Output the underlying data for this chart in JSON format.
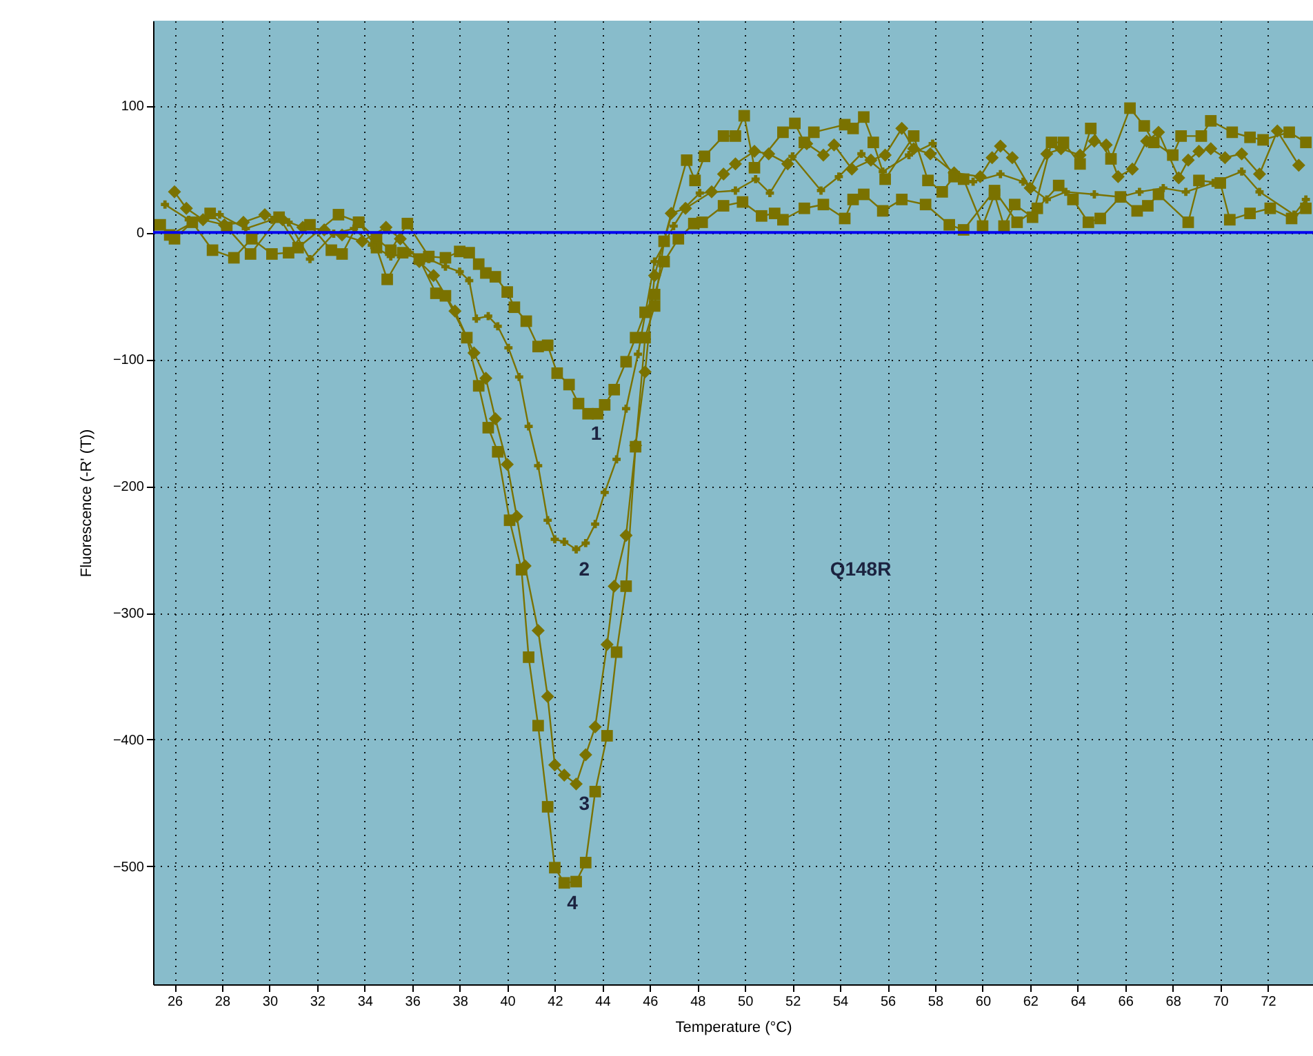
{
  "chart_data": {
    "type": "line",
    "xlabel": "Temperature (°C)",
    "ylabel": "Fluorescence (-R' (T))",
    "xlim": [
      25.1,
      73.9
    ],
    "ylim": [
      -593,
      167
    ],
    "xticks": [
      26,
      28,
      30,
      32,
      34,
      36,
      38,
      40,
      42,
      44,
      46,
      48,
      50,
      52,
      54,
      56,
      58,
      60,
      62,
      64,
      66,
      68,
      70,
      72
    ],
    "yticks": [
      -500,
      -400,
      -300,
      -200,
      -100,
      0,
      100
    ],
    "grid": true,
    "ref_lines": [
      {
        "axis": "y",
        "value": 0,
        "color": "#0000ee"
      }
    ],
    "annotations": [
      "Q148R"
    ],
    "series": [
      {
        "name": "1",
        "color": "#7a7200",
        "marker": "square",
        "x": [
          25.8,
          27.5,
          28.2,
          29.2,
          30.4,
          31.2,
          32.9,
          33.75,
          34.5,
          35.1,
          35.8,
          36.7,
          37.4,
          38.0,
          38.4,
          38.8,
          39.1,
          39.5,
          40.0,
          40.3,
          40.8,
          41.3,
          41.7,
          42.1,
          42.6,
          43.0,
          43.4,
          43.8,
          44.1,
          44.5,
          45.0,
          45.4,
          45.8,
          46.2,
          46.6,
          47.2,
          47.85,
          48.2,
          49.1,
          49.9,
          50.7,
          51.25,
          51.6,
          52.5,
          53.3,
          54.2,
          54.55,
          55.0,
          55.8,
          56.6,
          57.6,
          58.6,
          59.2,
          60.5,
          61.45,
          62.3,
          63.2,
          63.8,
          64.45,
          64.95,
          65.8,
          66.5,
          66.95,
          67.4,
          68.65,
          69.1,
          70.0,
          70.4,
          71.25,
          72.1,
          73.0,
          73.6
        ],
        "values": [
          -2,
          15,
          4,
          -17,
          12,
          -12,
          14,
          8,
          -5,
          -14,
          7,
          -19,
          -20,
          -15,
          -16,
          -25,
          -32,
          -35,
          -47,
          -59,
          -70,
          -90,
          -89,
          -111,
          -120,
          -135,
          -143,
          -143,
          -136,
          -124,
          -102,
          -83,
          -63,
          -49,
          -23,
          -5,
          7,
          8,
          21,
          24,
          13,
          15,
          10,
          19,
          22,
          11,
          26,
          30,
          17,
          26,
          22,
          6,
          2,
          33,
          8,
          19,
          37,
          26,
          8,
          11,
          28,
          17,
          21,
          30,
          8,
          41,
          39,
          10,
          15,
          19,
          11,
          19
        ]
      },
      {
        "name": "2",
        "color": "#7a7200",
        "marker": "cross",
        "x": [
          25.6,
          26.6,
          27.9,
          29.0,
          30.1,
          30.8,
          31.7,
          32.7,
          33.55,
          34.3,
          35.1,
          35.9,
          36.7,
          37.4,
          38.0,
          38.4,
          38.7,
          39.2,
          39.6,
          40.05,
          40.5,
          40.9,
          41.3,
          41.7,
          42.0,
          42.4,
          42.9,
          43.3,
          43.7,
          44.1,
          44.6,
          45.0,
          45.5,
          46.2,
          47.0,
          47.5,
          48.1,
          49.6,
          50.45,
          51.05,
          52.0,
          53.2,
          53.95,
          54.9,
          55.8,
          56.9,
          57.9,
          58.8,
          59.6,
          60.75,
          61.7,
          62.7,
          63.5,
          64.7,
          65.8,
          66.6,
          67.6,
          68.55,
          69.7,
          70.9,
          71.65,
          73.1,
          73.6
        ],
        "values": [
          22,
          10,
          14,
          3,
          10,
          8,
          -21,
          -1,
          3,
          -10,
          -19,
          -16,
          -21,
          -27,
          -31,
          -38,
          -68,
          -66,
          -74,
          -91,
          -114,
          -153,
          -184,
          -227,
          -242,
          -244,
          -250,
          -245,
          -230,
          -205,
          -179,
          -139,
          -96,
          -23,
          5,
          20,
          31,
          33,
          42,
          31,
          60,
          33,
          44,
          62,
          48,
          61,
          70,
          44,
          40,
          46,
          40,
          26,
          32,
          30,
          28,
          32,
          35,
          32,
          39,
          48,
          32,
          14,
          26
        ]
      },
      {
        "name": "3",
        "color": "#7a7200",
        "marker": "diamond",
        "x": [
          26.0,
          26.5,
          27.2,
          28.1,
          28.9,
          29.8,
          30.55,
          31.4,
          32.3,
          33.05,
          33.9,
          34.9,
          35.5,
          36.3,
          36.9,
          37.8,
          38.6,
          39.1,
          39.5,
          40.0,
          40.4,
          40.75,
          41.3,
          41.7,
          42.0,
          42.4,
          42.9,
          43.3,
          43.7,
          44.2,
          44.5,
          45.0,
          45.4,
          45.8,
          46.2,
          46.9,
          47.5,
          48.6,
          49.1,
          49.6,
          50.4,
          51.0,
          51.8,
          52.6,
          53.3,
          53.75,
          54.5,
          55.3,
          55.9,
          56.6,
          57.1,
          57.8,
          58.8,
          59.9,
          60.4,
          60.75,
          61.25,
          62.0,
          62.7,
          63.3,
          64.1,
          64.7,
          65.2,
          65.7,
          66.3,
          66.9,
          67.4,
          68.25,
          68.65,
          69.1,
          69.6,
          70.2,
          70.9,
          71.65,
          72.4,
          73.3
        ],
        "values": [
          32,
          19,
          10,
          6,
          8,
          14,
          10,
          4,
          2,
          -2,
          -7,
          4,
          -5,
          -23,
          -34,
          -62,
          -95,
          -115,
          -147,
          -183,
          -224,
          -263,
          -314,
          -366,
          -420,
          -428,
          -435,
          -412,
          -390,
          -325,
          -279,
          -239,
          -168,
          -110,
          -34,
          15,
          19,
          32,
          46,
          54,
          64,
          62,
          54,
          70,
          61,
          69,
          50,
          57,
          61,
          82,
          66,
          62,
          47,
          44,
          59,
          68,
          59,
          35,
          62,
          66,
          61,
          72,
          69,
          44,
          50,
          72,
          79,
          43,
          57,
          64,
          66,
          59,
          62,
          46,
          80,
          53
        ]
      },
      {
        "name": "4",
        "color": "#7a7200",
        "marker": "square",
        "x": [
          25.4,
          26.0,
          26.75,
          27.6,
          28.5,
          29.25,
          30.1,
          30.8,
          31.7,
          32.6,
          33.05,
          33.75,
          34.5,
          34.95,
          35.6,
          36.3,
          37.0,
          37.4,
          38.3,
          38.8,
          39.2,
          39.6,
          40.1,
          40.6,
          40.9,
          41.3,
          41.7,
          42.0,
          42.4,
          42.9,
          43.3,
          43.7,
          44.2,
          44.6,
          45.0,
          45.4,
          45.8,
          46.2,
          46.6,
          47.55,
          47.9,
          48.3,
          49.1,
          49.6,
          49.97,
          50.4,
          51.6,
          52.1,
          52.5,
          52.9,
          54.2,
          54.55,
          55.0,
          55.4,
          55.9,
          57.1,
          57.7,
          58.3,
          58.8,
          59.2,
          60.0,
          60.5,
          60.9,
          61.35,
          62.1,
          62.9,
          63.4,
          64.1,
          64.55,
          65.4,
          66.2,
          66.8,
          67.2,
          68.0,
          68.35,
          69.2,
          69.6,
          70.5,
          71.25,
          71.8,
          72.9,
          73.6
        ],
        "values": [
          6,
          -5,
          8,
          -14,
          -20,
          -5,
          -17,
          -16,
          6,
          -14,
          -17,
          8,
          -12,
          -37,
          -16,
          -21,
          -48,
          -50,
          -83,
          -121,
          -154,
          -173,
          -227,
          -266,
          -335,
          -389,
          -453,
          -501,
          -513,
          -512,
          -497,
          -441,
          -397,
          -331,
          -279,
          -169,
          -83,
          -58,
          -7,
          57,
          41,
          60,
          76,
          76,
          92,
          51,
          79,
          86,
          71,
          79,
          85,
          82,
          91,
          71,
          42,
          76,
          41,
          32,
          44,
          42,
          5,
          30,
          5,
          22,
          12,
          71,
          71,
          54,
          82,
          58,
          98,
          84,
          71,
          61,
          76,
          76,
          88,
          79,
          75,
          73,
          79,
          71
        ]
      }
    ]
  }
}
